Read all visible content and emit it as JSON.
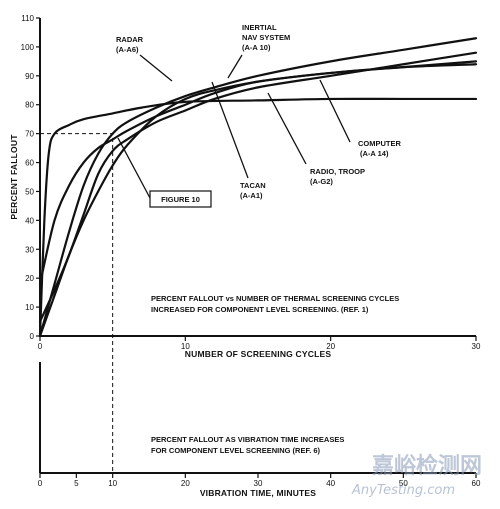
{
  "chart_data": [
    {
      "type": "line",
      "xlabel": "NUMBER OF SCREENING CYCLES",
      "ylabel": "PERCENT FALLOUT",
      "xlim": [
        0,
        30
      ],
      "ylim": [
        0,
        110
      ],
      "xticks": [
        0,
        10,
        20,
        30
      ],
      "yticks": [
        0,
        10,
        20,
        30,
        40,
        50,
        60,
        70,
        80,
        90,
        100,
        110
      ],
      "annotation": "PERCENT FALLOUT vs NUMBER OF THERMAL SCREENING CYCLES INCREASED FOR COMPONENT LEVEL SCREENING. (REF. 1)",
      "annotation_lines": [
        "PERCENT FALLOUT vs NUMBER OF THERMAL SCREENING CYCLES",
        "INCREASED FOR COMPONENT LEVEL SCREENING. (REF. 1)"
      ],
      "figure_box": "FIGURE 10",
      "reference_line": {
        "x": 5,
        "y": 70
      },
      "series": [
        {
          "name": "RADAR (A-A6)",
          "label_lines": [
            "RADAR",
            "(A-A6)"
          ],
          "x": [
            0,
            0.3,
            0.6,
            1,
            2,
            3,
            5,
            7,
            10,
            15,
            20,
            25,
            30
          ],
          "y": [
            0,
            40,
            63,
            70,
            73,
            75,
            77,
            79,
            81,
            81.5,
            82,
            82,
            82
          ]
        },
        {
          "name": "INERTIAL NAV SYSTEM (A-A 10)",
          "label_lines": [
            "INERTIAL",
            "NAV SYSTEM",
            "(A-A 10)"
          ],
          "x": [
            0,
            1,
            2,
            3,
            4,
            5,
            6,
            8,
            10,
            12,
            15,
            20,
            25,
            30
          ],
          "y": [
            0,
            18,
            36,
            52,
            63,
            70,
            74,
            79,
            83,
            86,
            90,
            95,
            99,
            103
          ]
        },
        {
          "name": "COMPUTER (A-A 14)",
          "label_lines": [
            "COMPUTER",
            "(A-A 14)"
          ],
          "x": [
            0,
            1,
            2,
            3,
            4,
            5,
            6,
            8,
            10,
            12,
            15,
            20,
            25,
            30
          ],
          "y": [
            0,
            14,
            28,
            40,
            50,
            59,
            66,
            76,
            82,
            85,
            88,
            91,
            93,
            95
          ]
        },
        {
          "name": "TACAN (A-A1)",
          "label_lines": [
            "TACAN",
            "(A-A1)"
          ],
          "x": [
            0,
            1,
            2,
            3,
            4,
            5,
            6,
            8,
            10,
            12,
            15,
            20,
            25,
            30
          ],
          "y": [
            18,
            40,
            52,
            60,
            65,
            68,
            71,
            76,
            80,
            84,
            88,
            91,
            93,
            94
          ]
        },
        {
          "name": "RADIO, TROOP (A-G2)",
          "label_lines": [
            "RADIO, TROOP",
            "(A-G2)"
          ],
          "x": [
            0,
            1,
            2,
            3,
            4,
            5,
            6,
            8,
            10,
            12,
            15,
            20,
            25,
            30
          ],
          "y": [
            5,
            16,
            28,
            42,
            56,
            64,
            68,
            74,
            78,
            82,
            86,
            90,
            94,
            98
          ]
        }
      ]
    },
    {
      "type": "line",
      "xlabel": "VIBRATION TIME, MINUTES",
      "xlim": [
        0,
        60
      ],
      "xticks": [
        0,
        5,
        10,
        20,
        30,
        40,
        50,
        60
      ],
      "annotation": "PERCENT FALLOUT AS VIBRATION TIME INCREASES FOR COMPONENT LEVEL SCREENING (REF. 6)",
      "annotation_lines": [
        "PERCENT FALLOUT AS VIBRATION TIME INCREASES",
        "FOR COMPONENT LEVEL SCREENING (REF. 6)"
      ],
      "series": []
    }
  ],
  "watermark": {
    "line1": "嘉峪检测网",
    "line2": "AnyTesting.com",
    "color": "#8a9bb8"
  }
}
